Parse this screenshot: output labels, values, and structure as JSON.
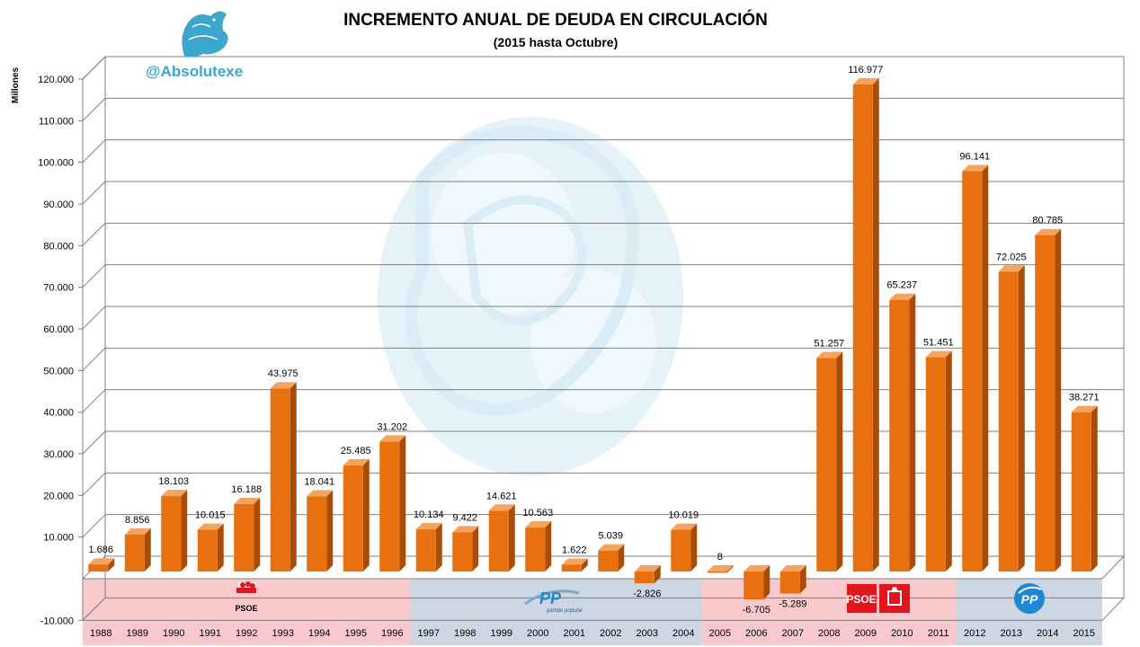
{
  "watermark": {
    "handle": "@Absolutexe"
  },
  "colors": {
    "bar_front": "#E8700E",
    "bar_side": "#A94C05",
    "bar_top": "#F5A45E",
    "grid": "#7F7F7F",
    "psoe_band": "#F9C9CC",
    "pp_band": "#CCD7E3",
    "watermark": "#E3F2F9",
    "handle": "#3DA6CF",
    "psoe_red": "#E3161D",
    "pp_blue": "#1E88D2"
  },
  "logos": {
    "psoe_1": "PSOE",
    "pp_1": "PP",
    "pp_1_tagline": "partido popular",
    "psoe_2": "PSOE",
    "pp_2": "PP"
  },
  "chart_data": {
    "type": "bar",
    "title": "INCREMENTO ANUAL DE DEUDA EN CIRCULACIÓN",
    "subtitle": "(2015 hasta Octubre)",
    "ylabel": "Millones",
    "xlabel": "",
    "ylim": [
      -10000,
      120000
    ],
    "yticks": [
      -10000,
      10000,
      20000,
      30000,
      40000,
      50000,
      60000,
      70000,
      80000,
      90000,
      100000,
      110000,
      120000
    ],
    "ytick_labels": [
      "-10.000",
      "10.000",
      "20.000",
      "30.000",
      "40.000",
      "50.000",
      "60.000",
      "70.000",
      "80.000",
      "90.000",
      "100.000",
      "110.000",
      "120.000"
    ],
    "grid": true,
    "categories": [
      "1988",
      "1989",
      "1990",
      "1991",
      "1992",
      "1993",
      "1994",
      "1995",
      "1996",
      "1997",
      "1998",
      "1999",
      "2000",
      "2001",
      "2002",
      "2003",
      "2004",
      "2005",
      "2006",
      "2007",
      "2008",
      "2009",
      "2010",
      "2011",
      "2012",
      "2013",
      "2014",
      "2015"
    ],
    "values": [
      1686,
      8856,
      18103,
      10015,
      16188,
      43975,
      18041,
      25485,
      31202,
      10134,
      9422,
      14621,
      10563,
      1622,
      5039,
      -2826,
      10019,
      8,
      -6705,
      -5289,
      51257,
      116977,
      65237,
      51451,
      96141,
      72025,
      80785,
      38271
    ],
    "value_labels": [
      "1.686",
      "8.856",
      "18.103",
      "10.015",
      "16.188",
      "43.975",
      "18.041",
      "25.485",
      "31.202",
      "10.134",
      "9.422",
      "14.621",
      "10.563",
      "1.622",
      "5.039",
      "-2.826",
      "10.019",
      "8",
      "-6.705",
      "-5.289",
      "51.257",
      "116.977",
      "65.237",
      "51.451",
      "96.141",
      "72.025",
      "80.785",
      "38.271"
    ],
    "governments": [
      {
        "party": "PSOE",
        "from": "1988",
        "to": "1996"
      },
      {
        "party": "PP",
        "from": "1997",
        "to": "2004"
      },
      {
        "party": "PSOE",
        "from": "2005",
        "to": "2011"
      },
      {
        "party": "PP",
        "from": "2012",
        "to": "2015"
      }
    ]
  }
}
